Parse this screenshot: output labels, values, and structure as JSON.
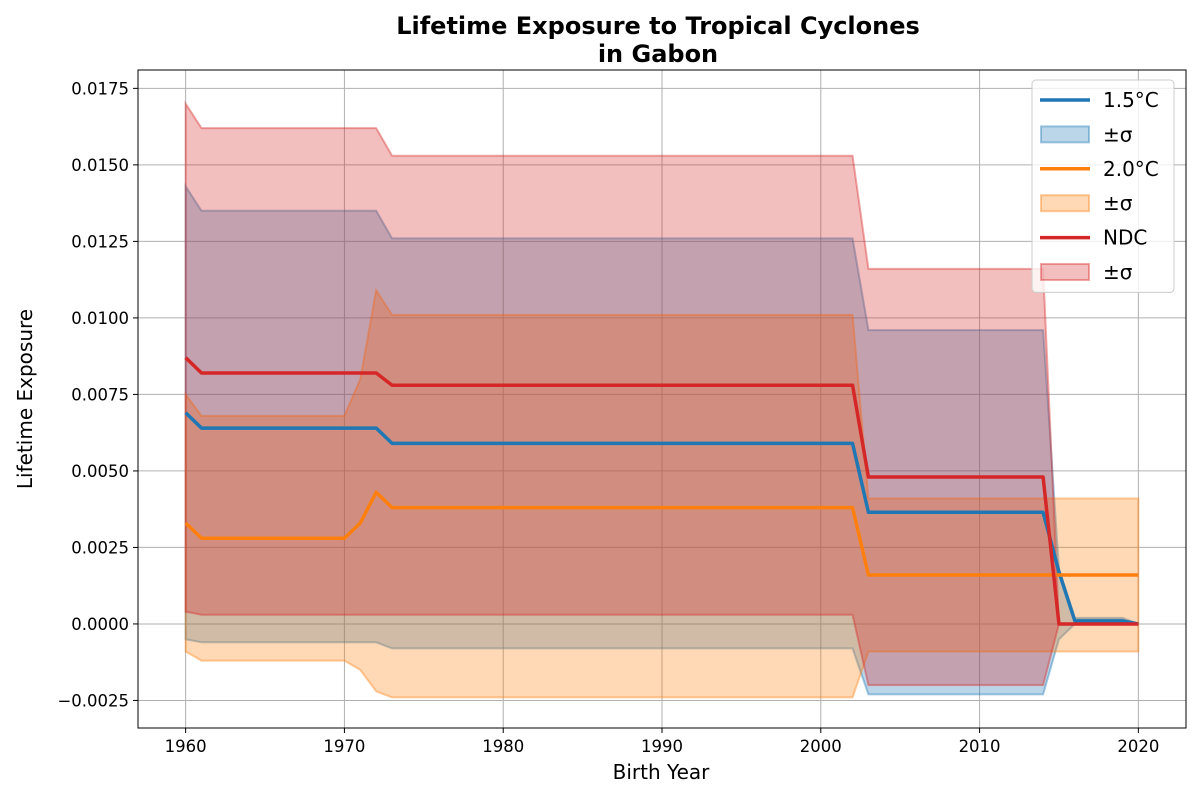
{
  "chart_data": {
    "type": "line",
    "title_line1": "Lifetime Exposure to Tropical Cyclones",
    "title_line2": "in Gabon",
    "xlabel": "Birth Year",
    "ylabel": "Lifetime Exposure",
    "xlim": [
      1957,
      2023
    ],
    "ylim": [
      -0.0034,
      0.0181
    ],
    "grid": true,
    "legend_position": "upper right",
    "x_ticks": [
      1960,
      1970,
      1980,
      1990,
      2000,
      2010,
      2020
    ],
    "x_tick_labels": [
      "1960",
      "1970",
      "1980",
      "1990",
      "2000",
      "2010",
      "2020"
    ],
    "y_ticks": [
      -0.0025,
      0.0,
      0.0025,
      0.005,
      0.0075,
      0.01,
      0.0125,
      0.015,
      0.0175
    ],
    "y_tick_labels": [
      "−0.0025",
      "0.0000",
      "0.0025",
      "0.0050",
      "0.0075",
      "0.0100",
      "0.0125",
      "0.0150",
      "0.0175"
    ],
    "x": [
      1960,
      1961,
      1970,
      1971,
      1972,
      1973,
      2002,
      2003,
      2014,
      2015,
      2016,
      2019,
      2020
    ],
    "series": [
      {
        "name": "1.5°C",
        "band_label": "±σ",
        "color": "#1f77b4",
        "band_color": "#1f77b4",
        "mean": [
          0.0069,
          0.0064,
          0.0064,
          0.0064,
          0.0064,
          0.0059,
          0.0059,
          0.00365,
          0.00365,
          0.0017,
          0.0001,
          0.0001,
          0.0
        ],
        "upper": [
          0.0143,
          0.0135,
          0.0135,
          0.0135,
          0.0135,
          0.0126,
          0.0126,
          0.0096,
          0.0096,
          0.0018,
          0.0002,
          0.0002,
          0.0
        ],
        "lower": [
          -0.0005,
          -0.0006,
          -0.0006,
          -0.0006,
          -0.0006,
          -0.0008,
          -0.0008,
          -0.0023,
          -0.0023,
          -0.0005,
          0.0,
          0.0,
          0.0
        ]
      },
      {
        "name": "2.0°C",
        "band_label": "±σ",
        "color": "#ff7f0e",
        "band_color": "#ff7f0e",
        "mean": [
          0.0033,
          0.0028,
          0.0028,
          0.0033,
          0.0043,
          0.0038,
          0.0038,
          0.0016,
          0.0016,
          0.0016,
          0.0016,
          0.0016,
          0.0016
        ],
        "upper": [
          0.0075,
          0.0068,
          0.0068,
          0.008,
          0.0109,
          0.0101,
          0.0101,
          0.0041,
          0.0041,
          0.0041,
          0.0041,
          0.0041,
          0.0041
        ],
        "lower": [
          -0.0009,
          -0.0012,
          -0.0012,
          -0.0015,
          -0.0022,
          -0.0024,
          -0.0024,
          -0.0009,
          -0.0009,
          -0.0009,
          -0.0009,
          -0.0009,
          -0.0009
        ]
      },
      {
        "name": "NDC",
        "band_label": "±σ",
        "color": "#d62728",
        "band_color": "#d62728",
        "mean": [
          0.0087,
          0.0082,
          0.0082,
          0.0082,
          0.0082,
          0.0078,
          0.0078,
          0.0048,
          0.0048,
          0.0,
          0.0,
          0.0,
          0.0
        ],
        "upper": [
          0.017,
          0.0162,
          0.0162,
          0.0162,
          0.0162,
          0.0153,
          0.0153,
          0.0116,
          0.0116,
          0.0,
          0.0,
          0.0,
          0.0
        ],
        "lower": [
          0.0004,
          0.0003,
          0.0003,
          0.0003,
          0.0003,
          0.0003,
          0.0003,
          -0.002,
          -0.002,
          0.0,
          0.0,
          0.0,
          0.0
        ]
      }
    ]
  }
}
